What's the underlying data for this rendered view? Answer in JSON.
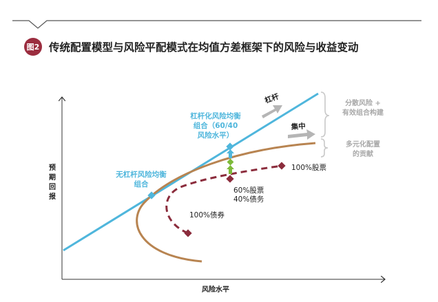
{
  "header": {
    "badge": "图2",
    "title": "传统配置模型与风险平配模式在均值方差框架下的风险与收益变动"
  },
  "axes": {
    "y_label": "预期回报",
    "x_label": "风险水平"
  },
  "labels": {
    "levered_parity_1": "杠杆化风险均衡",
    "levered_parity_2": "组合（60/40",
    "levered_parity_3": "风险水平）",
    "unlevered_parity_1": "无杠杆风险均衡",
    "unlevered_parity_2": "组合",
    "stock_100": "100%股票",
    "mix_1": "60%股票",
    "mix_2": "40%债务",
    "bond_100": "100%债券",
    "leverage": "杠杆",
    "concentration": "集中",
    "right_top_1": "分散风险 +",
    "right_top_2": "有效组合构建",
    "right_bottom_1": "多元化配置",
    "right_bottom_2": "的贡献"
  },
  "colors": {
    "badge": "#9b2d3f",
    "leverage_line": "#4fb6dc",
    "frontier": "#b88451",
    "traditional": "#8b2c3c",
    "step_arrow_green": "#7dba3a",
    "step_arrow_blue": "#4fb6dc",
    "gray_arrow": "#b5b5b5",
    "brace": "#c8c8c8"
  },
  "icons": {
    "badge": "figure-badge",
    "arrows": "gray-block-arrow-icon",
    "braces": "curly-brace-icon"
  }
}
